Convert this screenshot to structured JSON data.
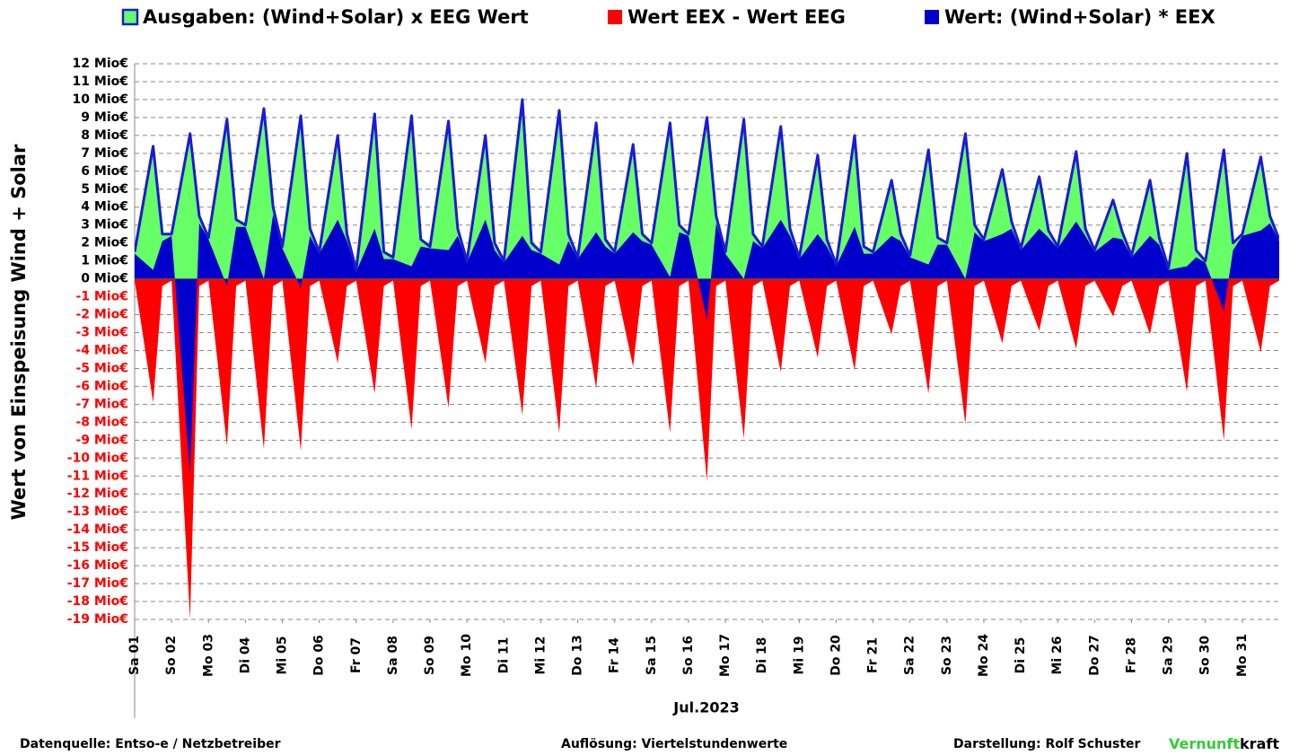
{
  "chart_data": {
    "type": "area",
    "ylabel": "Wert von Einspeisung Wind + Solar",
    "xlabel": "Jul.2023",
    "xlim": [
      1,
      32
    ],
    "ylim": [
      -19,
      12
    ],
    "grid": true,
    "negative_tick_color": "#ff0000",
    "legend": "top",
    "xticks": [
      {
        "value": 1,
        "label": "Sa 01"
      },
      {
        "value": 2,
        "label": "So 02"
      },
      {
        "value": 3,
        "label": "Mo 03"
      },
      {
        "value": 4,
        "label": "Di 04"
      },
      {
        "value": 5,
        "label": "Mi 05"
      },
      {
        "value": 6,
        "label": "Do 06"
      },
      {
        "value": 7,
        "label": "Fr 07"
      },
      {
        "value": 8,
        "label": "Sa 08"
      },
      {
        "value": 9,
        "label": "So 09"
      },
      {
        "value": 10,
        "label": "Mo 10"
      },
      {
        "value": 11,
        "label": "Di 11"
      },
      {
        "value": 12,
        "label": "Mi 12"
      },
      {
        "value": 13,
        "label": "Do 13"
      },
      {
        "value": 14,
        "label": "Fr 14"
      },
      {
        "value": 15,
        "label": "Sa 15"
      },
      {
        "value": 16,
        "label": "So 16"
      },
      {
        "value": 17,
        "label": "Mo 17"
      },
      {
        "value": 18,
        "label": "Di 18"
      },
      {
        "value": 19,
        "label": "Mi 19"
      },
      {
        "value": 20,
        "label": "Do 20"
      },
      {
        "value": 21,
        "label": "Fr 21"
      },
      {
        "value": 22,
        "label": "Sa 22"
      },
      {
        "value": 23,
        "label": "So 23"
      },
      {
        "value": 24,
        "label": "Mo 24"
      },
      {
        "value": 25,
        "label": "Di 25"
      },
      {
        "value": 26,
        "label": "Mi 26"
      },
      {
        "value": 27,
        "label": "Do 27"
      },
      {
        "value": 28,
        "label": "Fr 28"
      },
      {
        "value": 29,
        "label": "Sa 29"
      },
      {
        "value": 30,
        "label": "So 30"
      },
      {
        "value": 31,
        "label": "Mo 31"
      }
    ],
    "yticks": [
      {
        "value": 12,
        "label": "12 Mio€"
      },
      {
        "value": 11,
        "label": "11 Mio€"
      },
      {
        "value": 10,
        "label": "10 Mio€"
      },
      {
        "value": 9,
        "label": "9 Mio€"
      },
      {
        "value": 8,
        "label": "8 Mio€"
      },
      {
        "value": 7,
        "label": "7 Mio€"
      },
      {
        "value": 6,
        "label": "6 Mio€"
      },
      {
        "value": 5,
        "label": "5 Mio€"
      },
      {
        "value": 4,
        "label": "4 Mio€"
      },
      {
        "value": 3,
        "label": "3 Mio€"
      },
      {
        "value": 2,
        "label": "2 Mio€"
      },
      {
        "value": 1,
        "label": "1 Mio€"
      },
      {
        "value": 0,
        "label": "0 Mio€"
      },
      {
        "value": -1,
        "label": "-1 Mio€"
      },
      {
        "value": -2,
        "label": "-2 Mio€"
      },
      {
        "value": -3,
        "label": "-3 Mio€"
      },
      {
        "value": -4,
        "label": "-4 Mio€"
      },
      {
        "value": -5,
        "label": "-5 Mio€"
      },
      {
        "value": -6,
        "label": "-6 Mio€"
      },
      {
        "value": -7,
        "label": "-7 Mio€"
      },
      {
        "value": -8,
        "label": "-8 Mio€"
      },
      {
        "value": -9,
        "label": "-9 Mio€"
      },
      {
        "value": -10,
        "label": "-10 Mio€"
      },
      {
        "value": -11,
        "label": "-11 Mio€"
      },
      {
        "value": -12,
        "label": "-12 Mio€"
      },
      {
        "value": -13,
        "label": "-13 Mio€"
      },
      {
        "value": -14,
        "label": "-14 Mio€"
      },
      {
        "value": -15,
        "label": "-15 Mio€"
      },
      {
        "value": -16,
        "label": "-16 Mio€"
      },
      {
        "value": -17,
        "label": "-17 Mio€"
      },
      {
        "value": -18,
        "label": "-18 Mio€"
      },
      {
        "value": -19,
        "label": "-19 Mio€"
      }
    ],
    "x": [
      1,
      1.5,
      1.75,
      2,
      2.5,
      2.75,
      3,
      3.5,
      3.75,
      4,
      4.5,
      4.75,
      5,
      5.5,
      5.75,
      6,
      6.5,
      6.75,
      7,
      7.5,
      7.75,
      8,
      8.5,
      8.75,
      9,
      9.5,
      9.75,
      10,
      10.5,
      10.75,
      11,
      11.5,
      11.75,
      12,
      12.5,
      12.75,
      13,
      13.5,
      13.75,
      14,
      14.5,
      14.75,
      15,
      15.5,
      15.75,
      16,
      16.5,
      16.75,
      17,
      17.5,
      17.75,
      18,
      18.5,
      18.75,
      19,
      19.5,
      19.75,
      20,
      20.5,
      20.75,
      21,
      21.5,
      21.75,
      22,
      22.5,
      22.75,
      23,
      23.5,
      23.75,
      24,
      24.5,
      24.75,
      25,
      25.5,
      25.75,
      26,
      26.5,
      26.75,
      27,
      27.5,
      27.75,
      28,
      28.5,
      28.75,
      29,
      29.5,
      29.75,
      30,
      30.5,
      30.75,
      31,
      31.5,
      31.75,
      32
    ],
    "series": [
      {
        "name": "Ausgaben: (Wind+Solar) x EEG Wert",
        "color": "#66ff66",
        "edge_color": "#1a1ad6",
        "values": [
          1.5,
          7.4,
          2.5,
          2.5,
          8.1,
          3.5,
          2.3,
          8.9,
          3.3,
          3.0,
          9.5,
          4.0,
          1.8,
          9.1,
          2.8,
          1.5,
          8.0,
          2.5,
          0.5,
          9.2,
          1.5,
          1.2,
          9.1,
          2.2,
          1.8,
          8.8,
          2.8,
          1.0,
          8.0,
          2.0,
          1.0,
          10.0,
          2.0,
          1.5,
          9.4,
          2.5,
          1.2,
          8.7,
          2.2,
          1.5,
          7.5,
          2.5,
          2.0,
          8.7,
          3.0,
          2.5,
          9.0,
          3.5,
          1.5,
          8.9,
          2.5,
          1.8,
          8.5,
          2.8,
          1.2,
          6.9,
          2.2,
          0.8,
          8.0,
          1.8,
          1.5,
          5.5,
          2.5,
          1.3,
          7.2,
          2.3,
          2.0,
          8.1,
          3.0,
          2.2,
          6.1,
          3.2,
          1.7,
          5.7,
          2.7,
          1.8,
          7.1,
          2.8,
          1.6,
          4.4,
          2.6,
          1.3,
          5.5,
          2.3,
          0.6,
          7.0,
          1.6,
          1.0,
          7.2,
          2.0,
          2.5,
          6.8,
          3.5,
          2.2
        ]
      },
      {
        "name": "Wert EEX - Wert EEG",
        "color": "#ff0000",
        "values": [
          -0.1,
          -6.9,
          -0.4,
          -0.1,
          -19,
          -0.4,
          -0.1,
          -9.3,
          -0.4,
          -0.1,
          -9.5,
          -0.4,
          -0.1,
          -9.6,
          -0.4,
          -0.1,
          -4.7,
          -0.4,
          -0.1,
          -6.4,
          -0.4,
          -0.1,
          -8.4,
          -0.4,
          -0.1,
          -7.2,
          -0.4,
          -0.1,
          -4.7,
          -0.4,
          -0.1,
          -7.6,
          -0.4,
          -0.1,
          -8.6,
          -0.4,
          -0.1,
          -6.1,
          -0.4,
          -0.1,
          -4.9,
          -0.4,
          -0.1,
          -8.6,
          -0.4,
          -0.1,
          -11.3,
          -0.4,
          -0.1,
          -8.9,
          -0.4,
          -0.1,
          -5.2,
          -0.4,
          -0.1,
          -4.4,
          -0.4,
          -0.1,
          -5.1,
          -0.4,
          -0.1,
          -3.1,
          -0.4,
          -0.1,
          -6.4,
          -0.4,
          -0.1,
          -8.1,
          -0.4,
          -0.1,
          -3.6,
          -0.4,
          -0.1,
          -2.9,
          -0.4,
          -0.1,
          -3.9,
          -0.4,
          -0.1,
          -2.1,
          -0.4,
          -0.1,
          -3.1,
          -0.4,
          -0.1,
          -6.3,
          -0.4,
          -0.1,
          -9.0,
          -0.4,
          -0.1,
          -4.1,
          -0.4,
          -0.1
        ]
      },
      {
        "name": "Wert: (Wind+Solar) * EEX",
        "color": "#0000cc",
        "values": [
          1.4,
          0.5,
          2.1,
          2.4,
          -10.9,
          3.1,
          2.2,
          -0.4,
          2.9,
          2.9,
          0.0,
          3.6,
          1.7,
          -0.5,
          2.4,
          1.4,
          3.3,
          2.1,
          0.4,
          2.8,
          1.1,
          1.1,
          0.7,
          1.8,
          1.7,
          1.6,
          2.4,
          0.9,
          3.3,
          1.6,
          0.9,
          2.4,
          1.6,
          1.4,
          0.8,
          2.1,
          1.1,
          2.6,
          1.8,
          1.4,
          2.6,
          2.1,
          1.9,
          0.1,
          2.6,
          2.4,
          -2.3,
          3.1,
          1.4,
          0.0,
          2.1,
          1.7,
          3.3,
          2.4,
          1.1,
          2.5,
          1.8,
          0.7,
          2.9,
          1.4,
          1.4,
          2.4,
          2.1,
          1.2,
          0.8,
          1.9,
          1.9,
          0.0,
          2.6,
          2.1,
          2.5,
          2.8,
          1.6,
          2.8,
          2.3,
          1.7,
          3.2,
          2.4,
          1.5,
          2.3,
          2.2,
          1.2,
          2.4,
          1.9,
          0.5,
          0.7,
          1.2,
          0.9,
          -1.8,
          1.6,
          2.4,
          2.7,
          3.1,
          2.1
        ]
      }
    ]
  },
  "footer": {
    "source": "Datenquelle:  Entso-e  / Netzbetreiber",
    "resolution": "Auflösung: Viertelstundenwerte",
    "author": "Darstellung:  Rolf Schuster",
    "brand_green": "Vernunft",
    "brand_black": "kraft"
  }
}
